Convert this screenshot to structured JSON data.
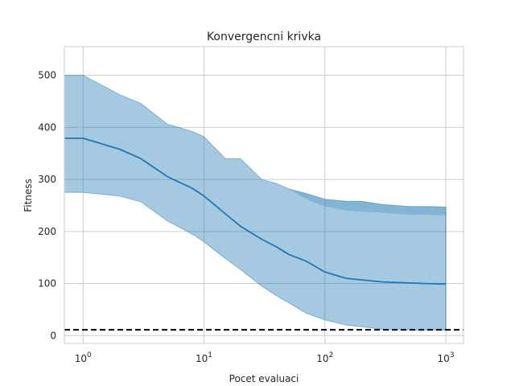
{
  "chart_data": {
    "type": "line",
    "title": "Konvergencni krivka",
    "xlabel": "Pocet evaluaci",
    "ylabel": "Fitness",
    "xscale": "log",
    "xlim": [
      0.7,
      1400
    ],
    "ylim": [
      -15,
      555
    ],
    "grid": true,
    "x_ticks": [
      {
        "value": 1,
        "base": "10",
        "exp": "0"
      },
      {
        "value": 10,
        "base": "10",
        "exp": "1"
      },
      {
        "value": 100,
        "base": "10",
        "exp": "2"
      },
      {
        "value": 1000,
        "base": "10",
        "exp": "3"
      }
    ],
    "y_ticks": [
      {
        "value": 0,
        "label": "0"
      },
      {
        "value": 100,
        "label": "100"
      },
      {
        "value": 200,
        "label": "200"
      },
      {
        "value": 300,
        "label": "300"
      },
      {
        "value": 400,
        "label": "400"
      },
      {
        "value": 500,
        "label": "500"
      }
    ],
    "reference_line": {
      "y": 11,
      "style": "dashed",
      "color": "#000000"
    },
    "series": [
      {
        "color": "#1f77b4",
        "x": [
          0.7,
          1,
          2,
          3,
          5,
          8,
          10,
          15,
          20,
          30,
          40,
          50,
          70,
          100,
          150,
          200,
          300,
          500,
          700,
          1000
        ],
        "mean": [
          379,
          379,
          358,
          340,
          305,
          283,
          268,
          234,
          210,
          185,
          170,
          156,
          143,
          122,
          110,
          107,
          103,
          101,
          100,
          99
        ],
        "upper": [
          500,
          500,
          463,
          446,
          406,
          392,
          382,
          340,
          340,
          300,
          292,
          282,
          273,
          262,
          258,
          258,
          252,
          248,
          248,
          247
        ],
        "lower": [
          275,
          275,
          268,
          257,
          220,
          195,
          180,
          148,
          127,
          95,
          76,
          63,
          43,
          30,
          20,
          17,
          12,
          11,
          11,
          11
        ],
        "upper_inner": [
          500,
          500,
          463,
          446,
          406,
          392,
          382,
          340,
          340,
          300,
          292,
          282,
          262,
          248,
          240,
          238,
          236,
          232,
          232,
          231
        ]
      }
    ]
  }
}
